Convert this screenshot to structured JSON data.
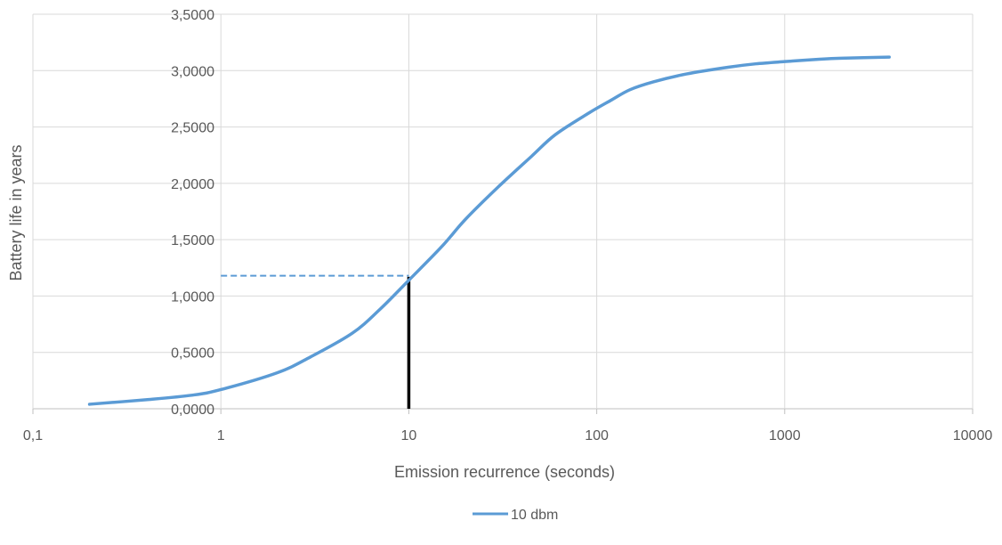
{
  "chart_data": {
    "type": "line",
    "title": "",
    "xlabel": "Emission recurrence (seconds)",
    "ylabel": "Battery life in years",
    "x_scale": "log",
    "xlim": [
      0.1,
      10000
    ],
    "ylim": [
      0,
      3.5
    ],
    "x_tick_labels": [
      "0,1",
      "1",
      "10",
      "100",
      "1000",
      "10000"
    ],
    "y_tick_labels": [
      "0,0000",
      "0,5000",
      "1,0000",
      "1,5000",
      "2,0000",
      "2,5000",
      "3,0000",
      "3,5000"
    ],
    "grid": true,
    "legend_position": "bottom",
    "series": [
      {
        "name": "10 dbm",
        "color": "#5B9BD5",
        "x": [
          0.2,
          0.4,
          0.7,
          1,
          2,
          3,
          5,
          7,
          10,
          15,
          20,
          30,
          45,
          60,
          90,
          120,
          150,
          200,
          300,
          500,
          700,
          1000,
          1500,
          2000,
          3600
        ],
        "y": [
          0.04,
          0.08,
          0.12,
          0.17,
          0.32,
          0.46,
          0.67,
          0.88,
          1.14,
          1.44,
          1.68,
          1.97,
          2.24,
          2.43,
          2.62,
          2.74,
          2.83,
          2.9,
          2.97,
          3.03,
          3.06,
          3.08,
          3.1,
          3.11,
          3.12
        ]
      }
    ],
    "annotations": [
      {
        "type": "horizontal-dashed-line",
        "y": 1.18,
        "x_from": 1,
        "x_to": 10,
        "color": "#5B9BD5"
      },
      {
        "type": "vertical-line",
        "x": 10,
        "y_from": 0,
        "y_to": 1.17,
        "color": "#000000"
      }
    ]
  }
}
